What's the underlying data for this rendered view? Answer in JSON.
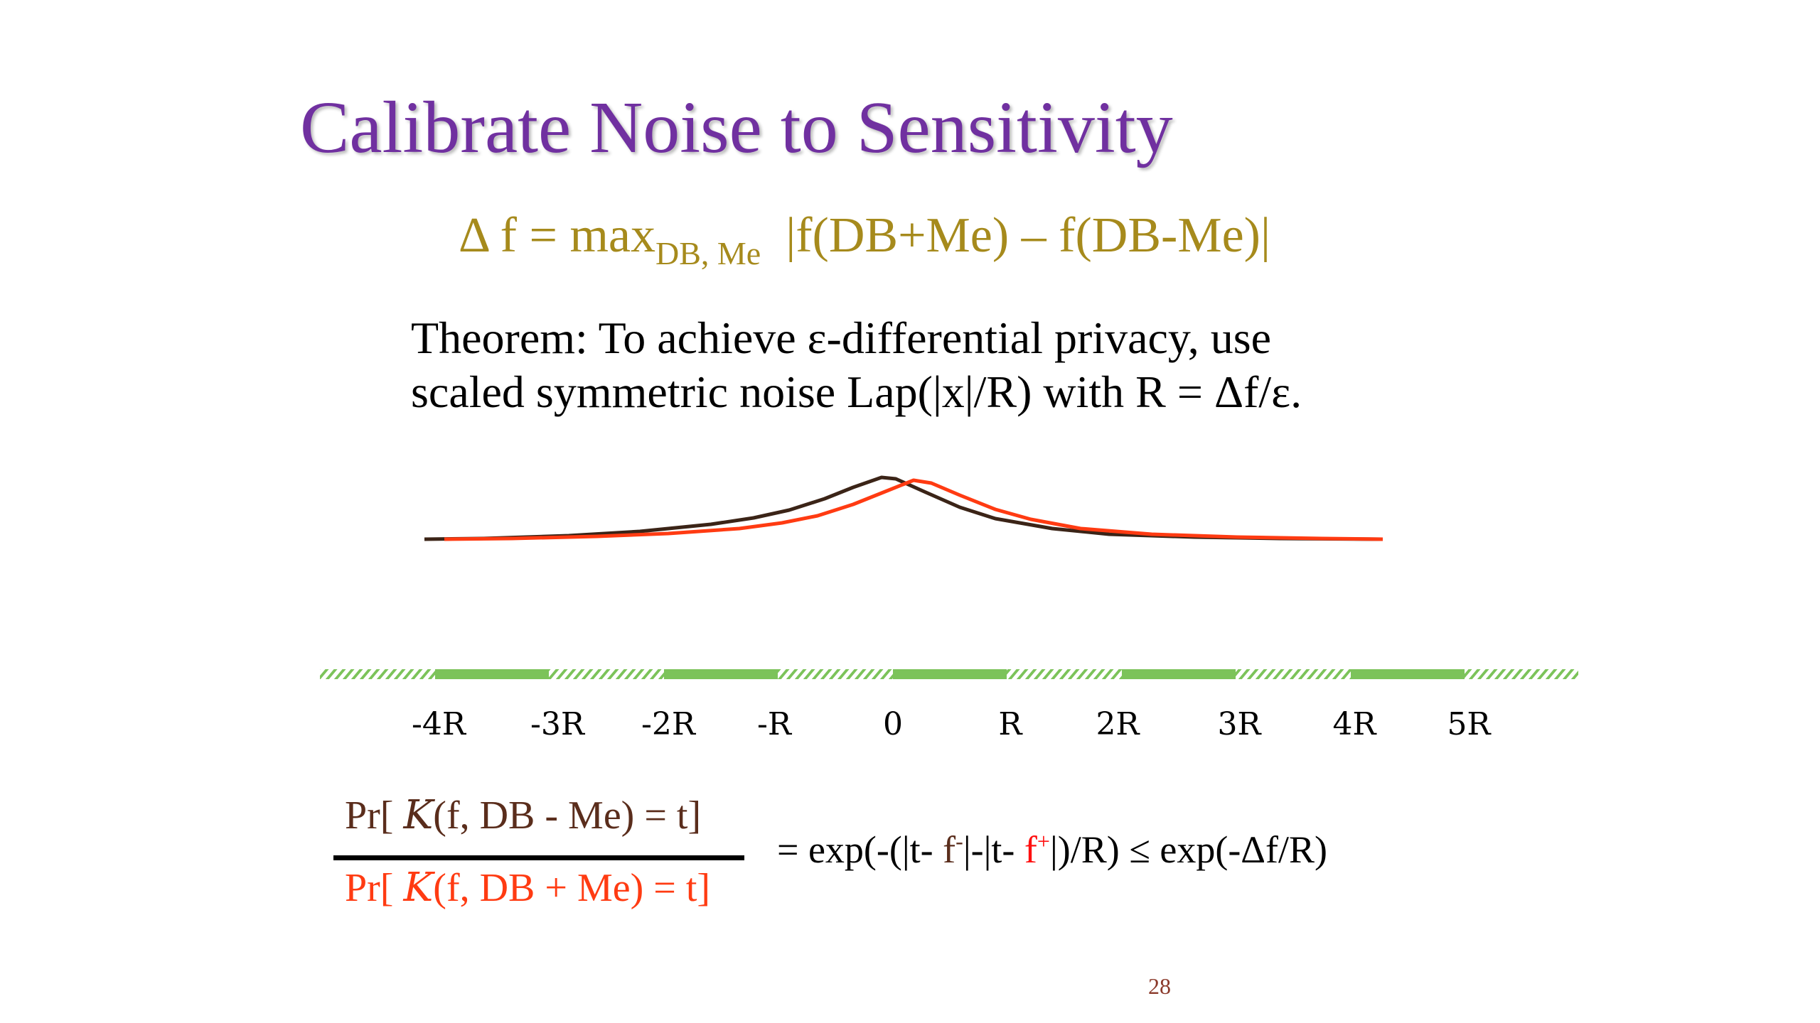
{
  "slide": {
    "title": "Calibrate Noise to Sensitivity",
    "formula": {
      "lhs": "Δ f = max",
      "sub": "DB, Me",
      "rhs": "|f(DB+Me) – f(DB-Me)|"
    },
    "theorem": {
      "line1": "Theorem: To achieve ε-differential privacy, use",
      "line2": "scaled symmetric noise Lap(|x|/R) with R = Δf/ε."
    },
    "axis_ticks": [
      "-4R",
      "-3R",
      "-2R",
      "-R",
      "0",
      "R",
      "2R",
      "3R",
      "4R",
      "5R"
    ],
    "fraction": {
      "num_pre": "Pr[ ",
      "num_k": "K",
      "num_post": "(f, DB - Me) = t]",
      "den_pre": "Pr[ ",
      "den_k": "K",
      "den_post": "(f, DB + Me) = t]"
    },
    "rhs": {
      "part1": "= exp(-(|t- ",
      "f_minus": "f",
      "minus_sup": "-",
      "part2": "|-|t- ",
      "f_plus": "f",
      "plus_sup": "+",
      "part3": "|)/R) ≤ exp(-Δf/R)"
    },
    "page_number": "28"
  },
  "colors": {
    "title": "#7030a0",
    "formula": "#a68a1c",
    "curve_dark": "#3b2417",
    "curve_red": "#ff3b12",
    "axis_green": "#7cc35a"
  }
}
